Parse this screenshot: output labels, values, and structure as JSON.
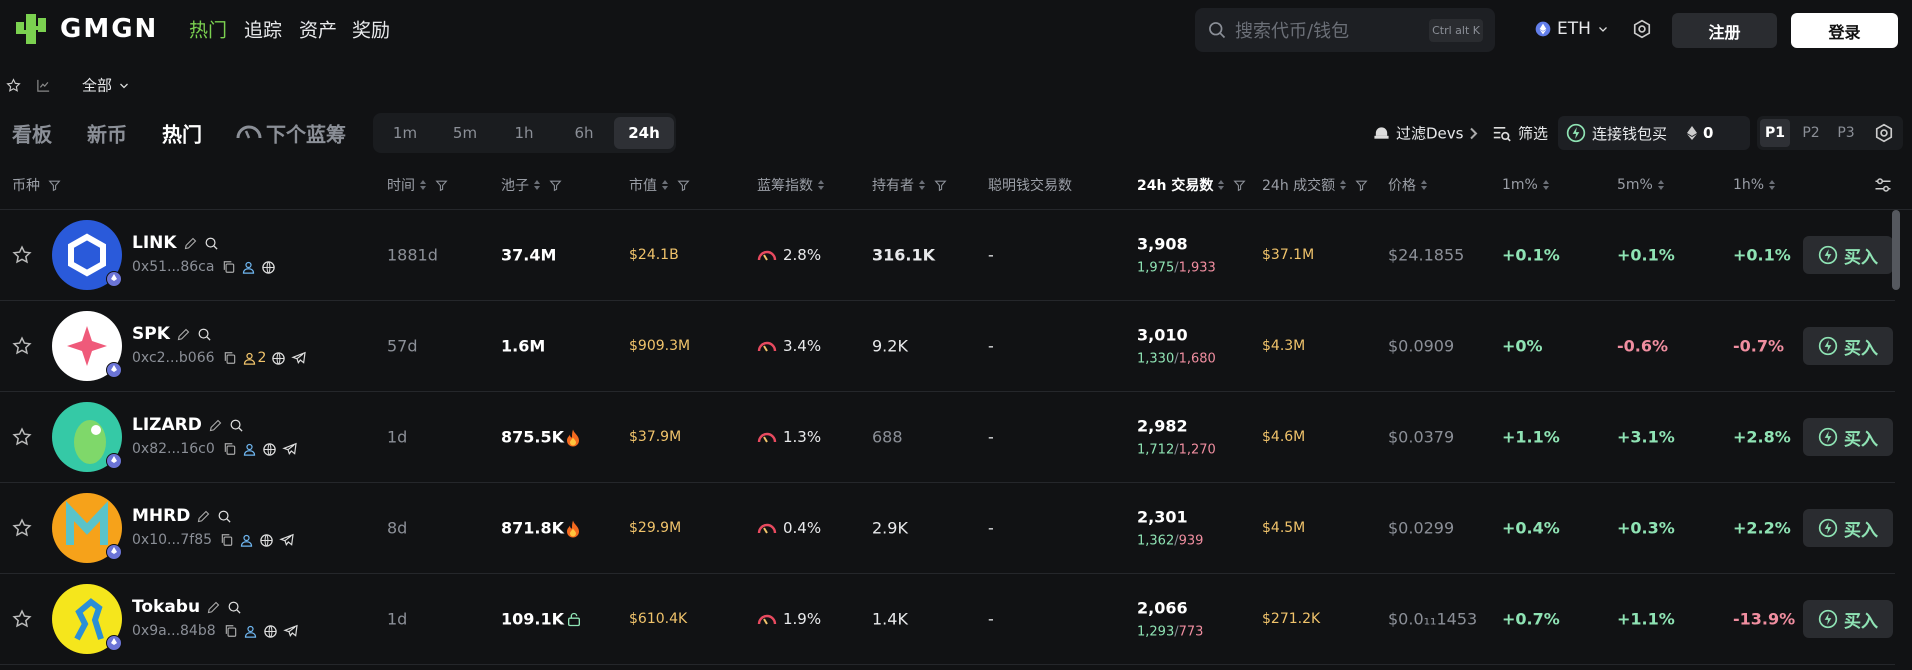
{
  "header": {
    "logo": "GMGN",
    "nav": [
      "热门",
      "追踪",
      "资产",
      "奖励"
    ],
    "search_placeholder": "搜索代币/钱包",
    "search_shortcut": "Ctrl alt K",
    "chain": "ETH",
    "register": "注册",
    "login": "登录"
  },
  "subbar": {
    "filter": "全部"
  },
  "tabs": {
    "items": [
      "看板",
      "新币",
      "热门",
      "下个蓝筹"
    ],
    "active": 2,
    "time": [
      "1m",
      "5m",
      "1h",
      "6h",
      "24h"
    ],
    "time_active": 4,
    "filter_devs": "过滤Devs",
    "screen": "筛选",
    "connect": "连接钱包买",
    "amount": "0",
    "presets": [
      "P1",
      "P2",
      "P3"
    ]
  },
  "table": {
    "columns": [
      "币种",
      "时间",
      "池子",
      "市值",
      "蓝筹指数",
      "持有者",
      "聪明钱交易数",
      "24h 交易数",
      "24h 成交额",
      "价格",
      "1m%",
      "5m%",
      "1h%"
    ],
    "sorted_column": 7,
    "buy": "买入",
    "tx_separator": "/",
    "rows": [
      {
        "symbol": "LINK",
        "address": "0x51...86ca",
        "telegram": false,
        "age": "1881d",
        "pool": "37.4M",
        "mcap": "$24.1B",
        "bluechip": "2.8%",
        "holders": "316.1K",
        "smart": "-",
        "txs": "3,908",
        "buys": "1,975",
        "sells": "1,933",
        "volume": "$37.1M",
        "price": "$24.1855",
        "m1": "+0.1%",
        "m5": "+0.1%",
        "h1": "+0.1%"
      },
      {
        "symbol": "SPK",
        "address": "0xc2...b066",
        "holder_tag": "2",
        "telegram": true,
        "age": "57d",
        "pool": "1.6M",
        "mcap": "$909.3M",
        "bluechip": "3.4%",
        "holders": "9.2K",
        "smart": "-",
        "txs": "3,010",
        "buys": "1,330",
        "sells": "1,680",
        "volume": "$4.3M",
        "price": "$0.0909",
        "m1": "+0%",
        "m5": "-0.6%",
        "h1": "-0.7%"
      },
      {
        "symbol": "LIZARD",
        "address": "0x82...16c0",
        "telegram": true,
        "age": "1d",
        "pool": "875.5K",
        "pool_icon": "fire",
        "mcap": "$37.9M",
        "bluechip": "1.3%",
        "holders": "688",
        "smart": "-",
        "txs": "2,982",
        "buys": "1,712",
        "sells": "1,270",
        "volume": "$4.6M",
        "price": "$0.0379",
        "m1": "+1.1%",
        "m5": "+3.1%",
        "h1": "+2.8%"
      },
      {
        "symbol": "MHRD",
        "address": "0x10...7f85",
        "telegram": true,
        "age": "8d",
        "pool": "871.8K",
        "pool_icon": "fire",
        "mcap": "$29.9M",
        "bluechip": "0.4%",
        "holders": "2.9K",
        "smart": "-",
        "txs": "2,301",
        "buys": "1,362",
        "sells": "939",
        "volume": "$4.5M",
        "price": "$0.0299",
        "m1": "+0.4%",
        "m5": "+0.3%",
        "h1": "+2.2%"
      },
      {
        "symbol": "Tokabu",
        "address": "0x9a...84b8",
        "telegram": true,
        "age": "1d",
        "pool": "109.1K",
        "pool_icon": "lock",
        "mcap": "$610.4K",
        "bluechip": "1.9%",
        "holders": "1.4K",
        "smart": "-",
        "txs": "2,066",
        "buys": "1,293",
        "sells": "773",
        "volume": "$271.2K",
        "price": "$0.0₁₁1453",
        "m1": "+0.7%",
        "m5": "+1.1%",
        "h1": "-13.9%"
      }
    ]
  }
}
